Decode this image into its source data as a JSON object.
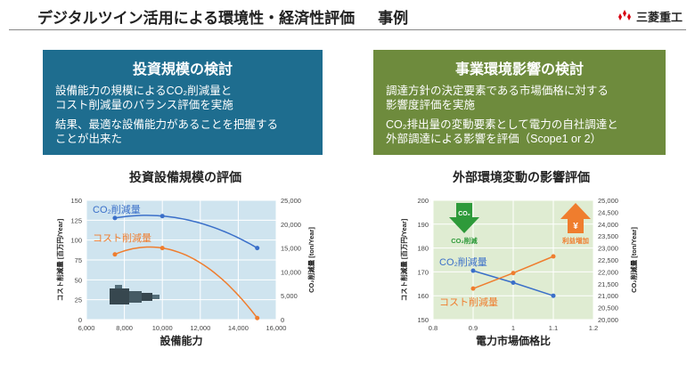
{
  "header": {
    "title": "デジタルツイン活用による環境性・経済性評価",
    "subtitle": "事例",
    "logo_text": "三菱重工",
    "logo_icon": "three-diamonds-icon"
  },
  "panels": [
    {
      "heading": "投資規模の検討",
      "lines": [
        "設備能力の規模によるCO₂削減量と",
        "コスト削減量のバランス評価を実施"
      ],
      "lines2": [
        "結果、最適な設備能力があることを把握する",
        "ことが出来た"
      ],
      "color": "#1e6d8f"
    },
    {
      "heading": "事業環境影響の検討",
      "lines": [
        "調達方針の決定要素である市場価格に対する",
        "影響度評価を実施"
      ],
      "lines2": [
        "CO₂排出量の変動要素として電力の自社調達と",
        "外部調達による影響を評価（Scope1 or 2）"
      ],
      "color": "#6e8b3d"
    }
  ],
  "chart_data": [
    {
      "type": "line",
      "title": "投資設備規模の評価",
      "xlabel": "設備能力",
      "ylabel": "コスト削減量 [百万円/Year]",
      "y2label": "CO₂削減量 [ton/Year]",
      "xlim": [
        6000,
        16000
      ],
      "xticks": [
        "6,000",
        "8,000",
        "10,000",
        "12,000",
        "14,000",
        "16,000"
      ],
      "ylim": [
        0,
        150
      ],
      "yticks": [
        "0",
        "25",
        "50",
        "75",
        "100",
        "125",
        "150"
      ],
      "y2lim": [
        0,
        25000
      ],
      "y2ticks": [
        "0",
        "5,000",
        "10,000",
        "15,000",
        "20,000",
        "25,000"
      ],
      "series": [
        {
          "name": "CO₂削減量",
          "axis": "right",
          "x": [
            7500,
            10000,
            15000
          ],
          "values": [
            21300,
            21700,
            15000
          ],
          "color": "#3a6fc9"
        },
        {
          "name": "コスト削減量",
          "axis": "left",
          "x": [
            7500,
            10000,
            15000
          ],
          "values": [
            82,
            90,
            2
          ],
          "color": "#ef7d2e"
        }
      ],
      "background": "#cfe4ef",
      "icon": "plant-machine-icon"
    },
    {
      "type": "line",
      "title": "外部環境変動の影響評価",
      "xlabel": "電力市場価格比",
      "ylabel": "コスト削減量 [百万円/Year]",
      "y2label": "CO₂削減量 [ton/Year]",
      "xlim": [
        0.8,
        1.2
      ],
      "xticks": [
        "0.8",
        "0.9",
        "1",
        "1.1",
        "1.2"
      ],
      "ylim": [
        150,
        200
      ],
      "yticks": [
        "150",
        "160",
        "170",
        "180",
        "190",
        "200"
      ],
      "y2lim": [
        20000,
        25000
      ],
      "y2ticks": [
        "20,000",
        "20,500",
        "21,000",
        "21,500",
        "22,000",
        "22,500",
        "23,000",
        "23,500",
        "24,000",
        "24,500",
        "25,000"
      ],
      "series": [
        {
          "name": "CO₂削減量",
          "axis": "right",
          "x": [
            0.9,
            1.0,
            1.1
          ],
          "values": [
            22050,
            21550,
            21000
          ],
          "color": "#3a6fc9"
        },
        {
          "name": "コスト削減量",
          "axis": "left",
          "x": [
            0.9,
            1.0,
            1.1
          ],
          "values": [
            163,
            169.5,
            176.5
          ],
          "color": "#ef7d2e"
        }
      ],
      "background": "#dfecd2",
      "badges": [
        {
          "text": "CO₂削減",
          "icon": "down-arrow-co2-icon",
          "color": "#2e9a3a",
          "icon_text": "CO₂"
        },
        {
          "text": "利益増加",
          "icon": "up-arrow-yen-icon",
          "color": "#ef7d2e",
          "icon_text": "¥"
        }
      ]
    }
  ]
}
